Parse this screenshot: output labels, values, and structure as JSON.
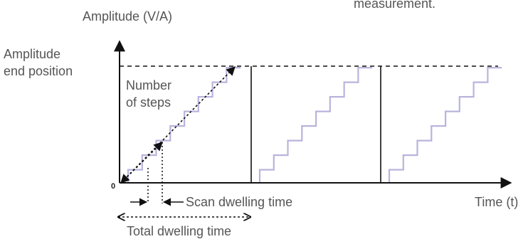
{
  "top_cut_text": "measurement.",
  "labels": {
    "y_axis": "Amplitude (V/A)",
    "end_position_line1": "Amplitude",
    "end_position_line2": "end position",
    "steps_line1": "Number",
    "steps_line2": "of steps",
    "origin": "0",
    "scan_dwell": "Scan dwelling time",
    "total_dwell": "Total dwelling time",
    "x_axis": "Time (t)"
  },
  "staircase": {
    "periods": 3,
    "steps_per_period": 8,
    "color": "#b8b4dc"
  },
  "colors": {
    "axis": "#111111",
    "text": "#555555",
    "staircase": "#b8b4dc"
  }
}
